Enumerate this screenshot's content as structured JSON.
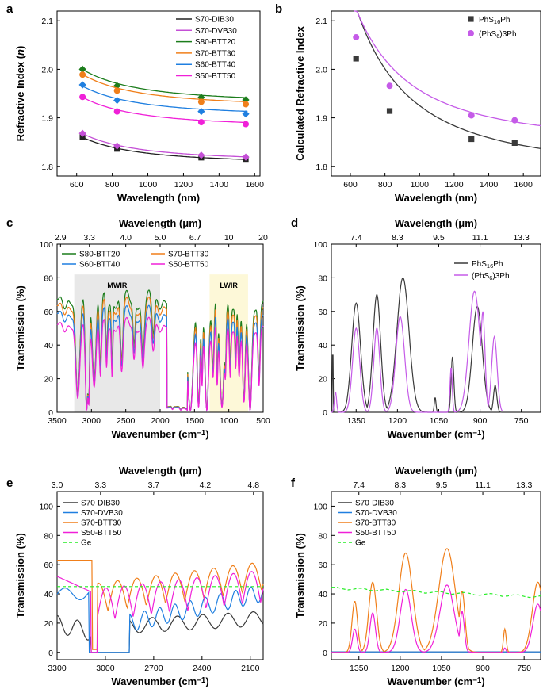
{
  "panels": [
    {
      "id": "a",
      "letter": "a",
      "type": "line",
      "xlabel": "Wavelength (nm)",
      "ylabel_parts": [
        "Refractive Index (",
        "n",
        ")"
      ],
      "xlim": [
        490,
        1630
      ],
      "ylim": [
        1.78,
        2.12
      ],
      "xticks": [
        600,
        800,
        1000,
        1200,
        1400,
        1600
      ],
      "yticks": [
        1.8,
        1.9,
        2.0,
        2.1
      ],
      "ytick_labels": [
        "1.8",
        "1.9",
        "2.0",
        "2.1"
      ],
      "legend_labels": [
        "S70-DIB30",
        "S70-DVB30",
        "S80-BTT20",
        "S70-BTT30",
        "S60-BTT40",
        "S50-BTT50"
      ],
      "series": [
        {
          "name": "S70-DIB30",
          "color": "#222222",
          "marker": "square",
          "x": [
            633,
            827,
            1300,
            1550
          ],
          "y": [
            1.861,
            1.836,
            1.818,
            1.815
          ],
          "fit": {
            "A": 1.805,
            "B": 22000
          }
        },
        {
          "name": "S70-DVB30",
          "color": "#c44fd6",
          "marker": "diamond",
          "x": [
            633,
            827,
            1300,
            1550
          ],
          "y": [
            1.868,
            1.842,
            1.823,
            1.819
          ],
          "fit": {
            "A": 1.81,
            "B": 23000
          }
        },
        {
          "name": "S80-BTT20",
          "color": "#1c7d1c",
          "marker": "diamond",
          "x": [
            633,
            827,
            1300,
            1550
          ],
          "y": [
            2.0,
            1.966,
            1.942,
            1.937
          ],
          "fit": {
            "A": 1.93,
            "B": 28000
          }
        },
        {
          "name": "S70-BTT30",
          "color": "#f07f1a",
          "marker": "circle",
          "x": [
            633,
            827,
            1300,
            1550
          ],
          "y": [
            1.989,
            1.956,
            1.933,
            1.928
          ],
          "fit": {
            "A": 1.922,
            "B": 27000
          }
        },
        {
          "name": "S60-BTT40",
          "color": "#1f7fe0",
          "marker": "diamond",
          "x": [
            633,
            827,
            1300,
            1550
          ],
          "y": [
            1.968,
            1.936,
            1.913,
            1.908
          ],
          "fit": {
            "A": 1.903,
            "B": 25000
          }
        },
        {
          "name": "S50-BTT50",
          "color": "#f020d8",
          "marker": "circle",
          "x": [
            633,
            827,
            1300,
            1550
          ],
          "y": [
            1.943,
            1.913,
            1.891,
            1.887
          ],
          "fit": {
            "A": 1.88,
            "B": 25000
          }
        }
      ]
    },
    {
      "id": "b",
      "letter": "b",
      "type": "scatter",
      "xlabel": "Wavelength (nm)",
      "ylabel": "Calculated Refractive Index",
      "xlim": [
        490,
        1700
      ],
      "ylim": [
        1.78,
        2.12
      ],
      "xticks": [
        600,
        800,
        1000,
        1200,
        1400,
        1600
      ],
      "yticks": [
        1.8,
        1.9,
        2.0,
        2.1
      ],
      "ytick_labels": [
        "1.8",
        "1.9",
        "2.0",
        "2.1"
      ],
      "legend_labels": [
        [
          "PhS",
          "16",
          "Ph",
          ""
        ],
        [
          "(PhS",
          "6",
          ")",
          "3Ph"
        ]
      ],
      "series": [
        {
          "name": "PhS16Ph",
          "color": "#3a3a3a",
          "marker": "square",
          "x": [
            633,
            827,
            1300,
            1550
          ],
          "y": [
            2.022,
            1.914,
            1.856,
            1.848
          ],
          "fit": {
            "A": 1.79,
            "B": 135000
          }
        },
        {
          "name": "(PhS6)3Ph",
          "color": "#c55be8",
          "marker": "circle",
          "x": [
            633,
            827,
            1300,
            1550
          ],
          "y": [
            2.066,
            1.966,
            1.905,
            1.895
          ],
          "fit": {
            "A": 1.845,
            "B": 112000
          }
        }
      ]
    },
    {
      "id": "c",
      "letter": "c",
      "type": "line",
      "xlabel": "Wavenumber (cm−1)",
      "ylabel": "Transmission (%)",
      "top_label": "Wavelength (μm)",
      "xlim": [
        3500,
        500
      ],
      "ylim": [
        0,
        100
      ],
      "xticks": [
        3500,
        3000,
        2500,
        2000,
        1500,
        1000,
        500
      ],
      "yticks": [
        0,
        20,
        40,
        60,
        80,
        100
      ],
      "top_ticks": [
        "2.9",
        "3.3",
        "4.0",
        "5.0",
        "6.7",
        "10",
        "20"
      ],
      "top_tick_positions_cm": [
        3450,
        3030,
        2500,
        2000,
        1490,
        1000,
        500
      ],
      "bands": [
        {
          "label": "MWIR",
          "from": 3250,
          "to": 2000,
          "color": "#e8e8e8"
        },
        {
          "label": "LWIR",
          "from": 1280,
          "to": 720,
          "color": "#fdf8d8"
        }
      ],
      "legend_labels": [
        "S80-BTT20",
        "S70-BTT30",
        "S60-BTT40",
        "S50-BTT50"
      ],
      "series": [
        {
          "name": "S80-BTT20",
          "color": "#1c7d1c",
          "level": 72
        },
        {
          "name": "S70-BTT30",
          "color": "#f07f1a",
          "level": 68
        },
        {
          "name": "S60-BTT40",
          "color": "#1f7fe0",
          "level": 63
        },
        {
          "name": "S50-BTT50",
          "color": "#f020d8",
          "level": 56
        }
      ]
    },
    {
      "id": "d",
      "letter": "d",
      "type": "line",
      "xlabel": "Wavenumber (cm−1)",
      "ylabel": "Transmission (%)",
      "top_label": "Wavelength (μm)",
      "xlim": [
        1440,
        680
      ],
      "ylim": [
        0,
        100
      ],
      "xticks": [
        1350,
        1200,
        1050,
        900,
        750
      ],
      "yticks": [
        0,
        20,
        40,
        60,
        80,
        100
      ],
      "top_ticks": [
        "7.4",
        "8.3",
        "9.5",
        "11.1",
        "13.3"
      ],
      "top_tick_positions_cm": [
        1350,
        1200,
        1050,
        900,
        750
      ],
      "legend_labels": [
        [
          "PhS",
          "16",
          "Ph",
          ""
        ],
        [
          "(PhS",
          "6",
          ")",
          "3Ph"
        ]
      ],
      "series": [
        {
          "name": "PhS16Ph",
          "color": "#3a3a3a",
          "peaks": [
            [
              1435,
              1,
              56
            ],
            [
              1350,
              16,
              65
            ],
            [
              1275,
              14,
              70
            ],
            [
              1180,
              22,
              80
            ],
            [
              1063,
              3,
              9
            ],
            [
              1000,
              5,
              33
            ],
            [
              910,
              18,
              63
            ],
            [
              845,
              6,
              16
            ]
          ]
        },
        {
          "name": "(PhS6)3Ph",
          "color": "#c55be8",
          "peaks": [
            [
              1425,
              4,
              12
            ],
            [
              1350,
              13,
              50
            ],
            [
              1275,
              11,
              50
            ],
            [
              1190,
              16,
              57
            ],
            [
              1005,
              4,
              27
            ],
            [
              920,
              20,
              72
            ],
            [
              890,
              8,
              60
            ],
            [
              848,
              10,
              45
            ]
          ]
        }
      ]
    },
    {
      "id": "e",
      "letter": "e",
      "type": "line",
      "xlabel": "Wavenumber (cm−1)",
      "ylabel": "Transmission (%)",
      "top_label": "Wavelength (μm)",
      "xlim": [
        3300,
        2020
      ],
      "ylim": [
        -5,
        110
      ],
      "xticks": [
        3300,
        3000,
        2700,
        2400,
        2100
      ],
      "yticks": [
        0,
        20,
        40,
        60,
        80,
        100
      ],
      "top_ticks": [
        "3.0",
        "3.3",
        "3.7",
        "4.2",
        "4.8"
      ],
      "top_tick_positions_cm": [
        3300,
        3030,
        2700,
        2380,
        2080
      ],
      "legend_labels": [
        "S70-DIB30",
        "S70-DVB30",
        "S70-BTT30",
        "S50-BTT50",
        "Ge"
      ],
      "series": [
        {
          "name": "S70-DIB30",
          "color": "#3a3a3a"
        },
        {
          "name": "S70-DVB30",
          "color": "#1f7fe0"
        },
        {
          "name": "S70-BTT30",
          "color": "#f07f1a"
        },
        {
          "name": "S50-BTT50",
          "color": "#f020d8"
        },
        {
          "name": "Ge",
          "color": "#22ee22",
          "dashed": true,
          "level": 45
        }
      ]
    },
    {
      "id": "f",
      "letter": "f",
      "type": "line",
      "xlabel": "Wavenumber (cm−1)",
      "ylabel": "Transmission (%)",
      "top_label": "Wavelength (μm)",
      "xlim": [
        1450,
        690
      ],
      "ylim": [
        -5,
        110
      ],
      "xticks": [
        1350,
        1200,
        1050,
        900,
        750
      ],
      "yticks": [
        0,
        20,
        40,
        60,
        80,
        100
      ],
      "top_ticks": [
        "7.4",
        "8.3",
        "9.5",
        "11.1",
        "13.3"
      ],
      "top_tick_positions_cm": [
        1350,
        1200,
        1050,
        900,
        750
      ],
      "legend_labels": [
        "S70-DIB30",
        "S70-DVB30",
        "S70-BTT30",
        "S50-BTT50",
        "Ge"
      ],
      "series": [
        {
          "name": "S70-DIB30",
          "color": "#3a3a3a"
        },
        {
          "name": "S70-DVB30",
          "color": "#1f7fe0"
        },
        {
          "name": "S70-BTT30",
          "color": "#f07f1a",
          "peaks": [
            [
              1365,
              10,
              35
            ],
            [
              1300,
              14,
              48
            ],
            [
              1180,
              25,
              68
            ],
            [
              1030,
              30,
              71
            ],
            [
              975,
              10,
              42
            ],
            [
              820,
              5,
              16
            ],
            [
              700,
              20,
              48
            ]
          ]
        },
        {
          "name": "S50-BTT50",
          "color": "#f020d8",
          "peaks": [
            [
              1365,
              8,
              16
            ],
            [
              1300,
              10,
              27
            ],
            [
              1180,
              20,
              43
            ],
            [
              1030,
              26,
              46
            ],
            [
              975,
              8,
              28
            ],
            [
              820,
              4,
              3
            ],
            [
              700,
              18,
              33
            ]
          ]
        },
        {
          "name": "Ge",
          "color": "#22ee22",
          "dashed": true,
          "start": 44,
          "end": 38
        }
      ]
    }
  ]
}
